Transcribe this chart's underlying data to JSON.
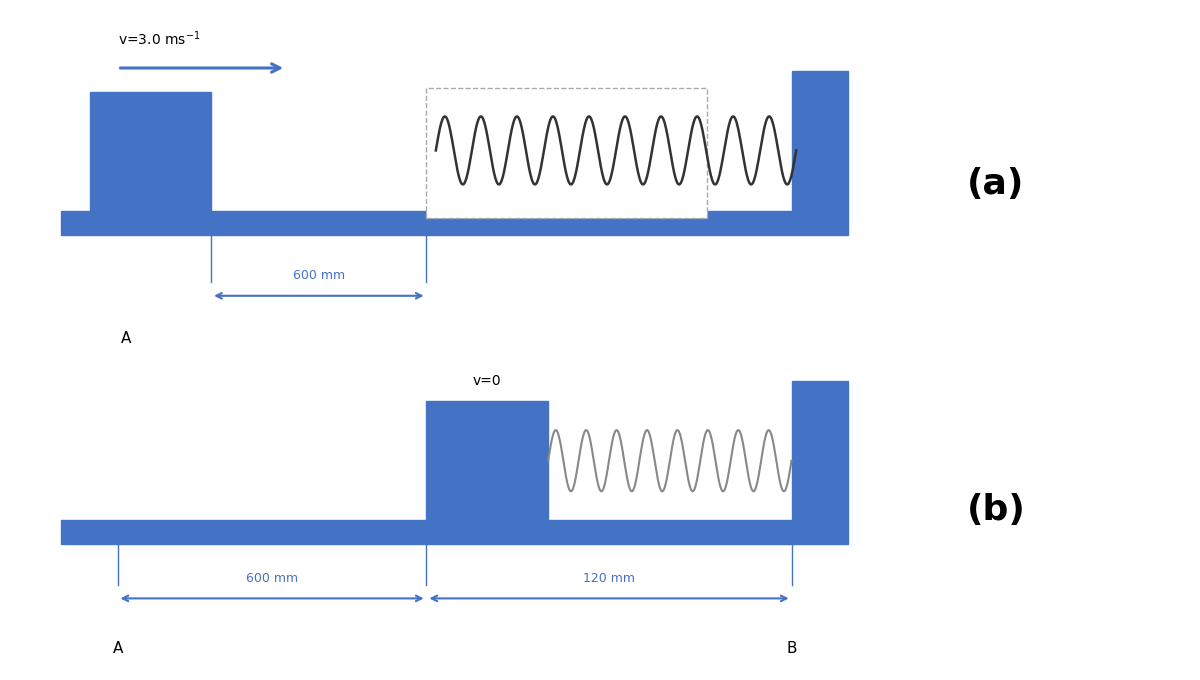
{
  "bg_color": "#ffffff",
  "blue": "#4472C4",
  "fig_width": 12.0,
  "fig_height": 6.8,
  "dpi": 100,
  "label_a": "(a)",
  "label_b": "(b)",
  "vel_text_a": "v=3.0 ms",
  "vel_text_b": "v=0"
}
